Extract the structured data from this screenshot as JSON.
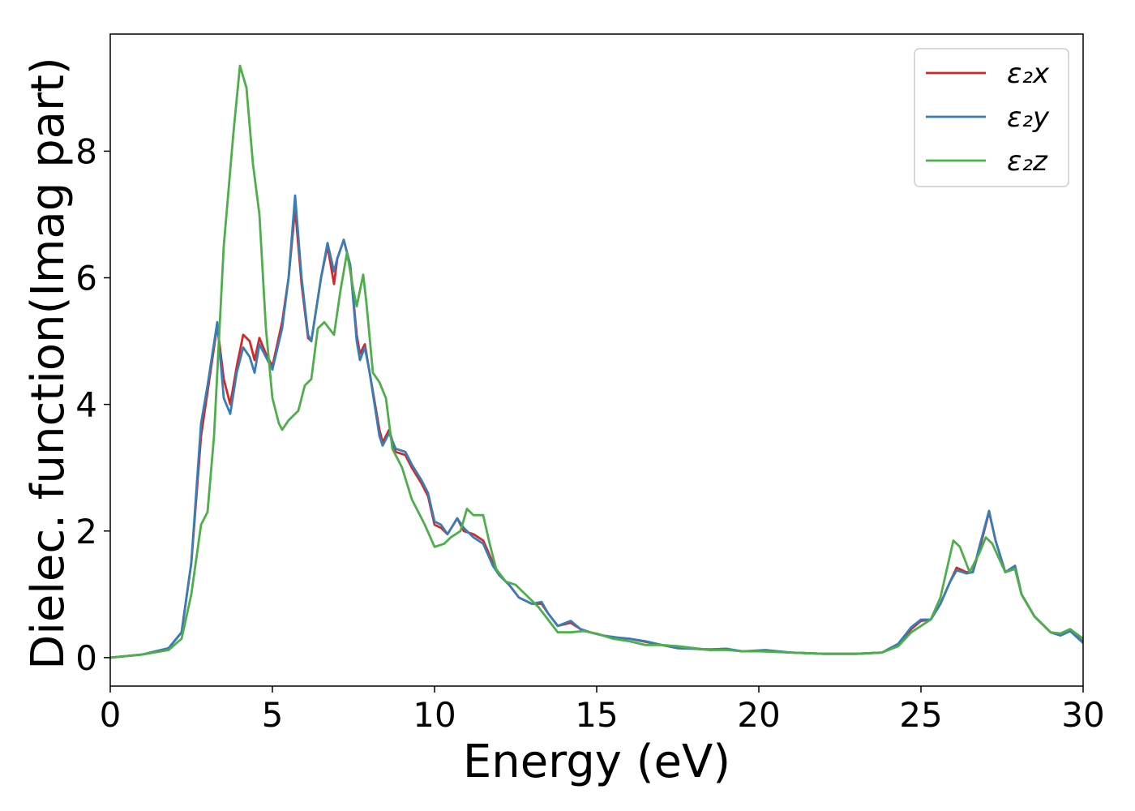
{
  "chart_data": {
    "type": "line",
    "xlabel": "Energy (eV)",
    "ylabel": "Dielec. function(Imag part)",
    "xlim": [
      0,
      30
    ],
    "ylim": [
      -0.45,
      9.85
    ],
    "xticks": [
      0,
      5,
      10,
      15,
      20,
      25,
      30
    ],
    "yticks": [
      0,
      2,
      4,
      6,
      8
    ],
    "grid": false,
    "legend_position": "top-right",
    "series": [
      {
        "name": "ε₂x",
        "color": "#d62728",
        "points": [
          [
            0,
            0
          ],
          [
            1,
            0.05
          ],
          [
            1.8,
            0.15
          ],
          [
            2.2,
            0.4
          ],
          [
            2.5,
            1.5
          ],
          [
            2.8,
            3.5
          ],
          [
            3.0,
            4.2
          ],
          [
            3.3,
            5.25
          ],
          [
            3.5,
            4.4
          ],
          [
            3.7,
            4.0
          ],
          [
            3.9,
            4.6
          ],
          [
            4.1,
            5.1
          ],
          [
            4.3,
            5.0
          ],
          [
            4.45,
            4.7
          ],
          [
            4.6,
            5.05
          ],
          [
            4.8,
            4.8
          ],
          [
            5.0,
            4.6
          ],
          [
            5.3,
            5.3
          ],
          [
            5.5,
            6.0
          ],
          [
            5.7,
            7.1
          ],
          [
            5.9,
            5.9
          ],
          [
            6.1,
            5.05
          ],
          [
            6.2,
            5.0
          ],
          [
            6.5,
            6.0
          ],
          [
            6.7,
            6.5
          ],
          [
            6.9,
            5.9
          ],
          [
            7.0,
            6.3
          ],
          [
            7.2,
            6.6
          ],
          [
            7.4,
            6.2
          ],
          [
            7.6,
            5.1
          ],
          [
            7.7,
            4.8
          ],
          [
            7.85,
            4.95
          ],
          [
            8.0,
            4.5
          ],
          [
            8.3,
            3.6
          ],
          [
            8.4,
            3.4
          ],
          [
            8.6,
            3.6
          ],
          [
            8.8,
            3.25
          ],
          [
            9.1,
            3.2
          ],
          [
            9.3,
            3.0
          ],
          [
            9.6,
            2.75
          ],
          [
            9.8,
            2.55
          ],
          [
            10.0,
            2.1
          ],
          [
            10.2,
            2.05
          ],
          [
            10.4,
            1.95
          ],
          [
            10.7,
            2.2
          ],
          [
            10.9,
            2.0
          ],
          [
            11.2,
            1.95
          ],
          [
            11.5,
            1.85
          ],
          [
            11.8,
            1.5
          ],
          [
            12.0,
            1.3
          ],
          [
            12.3,
            1.15
          ],
          [
            12.6,
            0.95
          ],
          [
            13.0,
            0.85
          ],
          [
            13.3,
            0.85
          ],
          [
            13.5,
            0.7
          ],
          [
            13.8,
            0.5
          ],
          [
            14.2,
            0.55
          ],
          [
            14.5,
            0.45
          ],
          [
            14.8,
            0.4
          ],
          [
            15.2,
            0.35
          ],
          [
            15.6,
            0.3
          ],
          [
            16.0,
            0.3
          ],
          [
            16.5,
            0.25
          ],
          [
            17.0,
            0.2
          ],
          [
            17.5,
            0.15
          ],
          [
            18.0,
            0.14
          ],
          [
            18.5,
            0.12
          ],
          [
            19.0,
            0.13
          ],
          [
            19.5,
            0.1
          ],
          [
            20.2,
            0.1
          ],
          [
            21.0,
            0.08
          ],
          [
            22.0,
            0.06
          ],
          [
            23.0,
            0.06
          ],
          [
            23.8,
            0.08
          ],
          [
            24.3,
            0.2
          ],
          [
            24.7,
            0.45
          ],
          [
            25.0,
            0.58
          ],
          [
            25.3,
            0.6
          ],
          [
            25.6,
            0.85
          ],
          [
            25.9,
            1.2
          ],
          [
            26.1,
            1.42
          ],
          [
            26.4,
            1.35
          ],
          [
            26.6,
            1.35
          ],
          [
            26.8,
            1.7
          ],
          [
            27.1,
            2.3
          ],
          [
            27.3,
            1.85
          ],
          [
            27.6,
            1.35
          ],
          [
            27.9,
            1.45
          ],
          [
            28.1,
            1.0
          ],
          [
            28.5,
            0.65
          ],
          [
            29.0,
            0.4
          ],
          [
            29.3,
            0.35
          ],
          [
            29.6,
            0.42
          ],
          [
            30.0,
            0.25
          ]
        ]
      },
      {
        "name": "ε₂y",
        "color": "#377eb8",
        "points": [
          [
            0,
            0
          ],
          [
            1,
            0.05
          ],
          [
            1.8,
            0.15
          ],
          [
            2.2,
            0.4
          ],
          [
            2.5,
            1.5
          ],
          [
            2.8,
            3.7
          ],
          [
            3.0,
            4.3
          ],
          [
            3.3,
            5.3
          ],
          [
            3.5,
            4.1
          ],
          [
            3.7,
            3.85
          ],
          [
            3.9,
            4.5
          ],
          [
            4.1,
            4.9
          ],
          [
            4.3,
            4.75
          ],
          [
            4.45,
            4.5
          ],
          [
            4.6,
            4.95
          ],
          [
            4.8,
            4.75
          ],
          [
            5.0,
            4.55
          ],
          [
            5.3,
            5.2
          ],
          [
            5.5,
            6.0
          ],
          [
            5.7,
            7.3
          ],
          [
            5.9,
            6.0
          ],
          [
            6.1,
            5.1
          ],
          [
            6.2,
            5.0
          ],
          [
            6.5,
            6.0
          ],
          [
            6.7,
            6.55
          ],
          [
            6.9,
            6.1
          ],
          [
            7.0,
            6.3
          ],
          [
            7.2,
            6.6
          ],
          [
            7.4,
            6.2
          ],
          [
            7.6,
            5.0
          ],
          [
            7.7,
            4.7
          ],
          [
            7.85,
            4.9
          ],
          [
            8.0,
            4.5
          ],
          [
            8.3,
            3.5
          ],
          [
            8.4,
            3.35
          ],
          [
            8.6,
            3.55
          ],
          [
            8.8,
            3.3
          ],
          [
            9.1,
            3.25
          ],
          [
            9.3,
            3.05
          ],
          [
            9.6,
            2.8
          ],
          [
            9.8,
            2.6
          ],
          [
            10.0,
            2.15
          ],
          [
            10.2,
            2.1
          ],
          [
            10.4,
            1.95
          ],
          [
            10.7,
            2.2
          ],
          [
            10.9,
            2.05
          ],
          [
            11.2,
            1.9
          ],
          [
            11.5,
            1.8
          ],
          [
            11.8,
            1.45
          ],
          [
            12.0,
            1.3
          ],
          [
            12.3,
            1.15
          ],
          [
            12.6,
            0.95
          ],
          [
            13.0,
            0.85
          ],
          [
            13.3,
            0.88
          ],
          [
            13.5,
            0.7
          ],
          [
            13.8,
            0.5
          ],
          [
            14.2,
            0.58
          ],
          [
            14.5,
            0.45
          ],
          [
            14.8,
            0.4
          ],
          [
            15.2,
            0.35
          ],
          [
            15.6,
            0.32
          ],
          [
            16.0,
            0.3
          ],
          [
            16.5,
            0.26
          ],
          [
            17.0,
            0.2
          ],
          [
            17.5,
            0.15
          ],
          [
            18.0,
            0.14
          ],
          [
            18.5,
            0.13
          ],
          [
            19.0,
            0.14
          ],
          [
            19.5,
            0.1
          ],
          [
            20.2,
            0.12
          ],
          [
            21.0,
            0.08
          ],
          [
            22.0,
            0.06
          ],
          [
            23.0,
            0.06
          ],
          [
            23.8,
            0.08
          ],
          [
            24.3,
            0.22
          ],
          [
            24.7,
            0.48
          ],
          [
            25.0,
            0.6
          ],
          [
            25.3,
            0.6
          ],
          [
            25.6,
            0.85
          ],
          [
            25.9,
            1.2
          ],
          [
            26.1,
            1.38
          ],
          [
            26.4,
            1.33
          ],
          [
            26.6,
            1.35
          ],
          [
            26.8,
            1.75
          ],
          [
            27.1,
            2.32
          ],
          [
            27.3,
            1.85
          ],
          [
            27.6,
            1.35
          ],
          [
            27.9,
            1.45
          ],
          [
            28.1,
            1.0
          ],
          [
            28.5,
            0.65
          ],
          [
            29.0,
            0.4
          ],
          [
            29.3,
            0.35
          ],
          [
            29.6,
            0.42
          ],
          [
            30.0,
            0.23
          ]
        ]
      },
      {
        "name": "ε₂z",
        "color": "#4daf4a",
        "points": [
          [
            0,
            0
          ],
          [
            1,
            0.05
          ],
          [
            1.8,
            0.12
          ],
          [
            2.2,
            0.3
          ],
          [
            2.5,
            1.0
          ],
          [
            2.8,
            2.1
          ],
          [
            3.0,
            2.3
          ],
          [
            3.2,
            3.5
          ],
          [
            3.5,
            6.5
          ],
          [
            3.8,
            8.3
          ],
          [
            4.0,
            9.35
          ],
          [
            4.2,
            9.0
          ],
          [
            4.4,
            7.8
          ],
          [
            4.6,
            7.0
          ],
          [
            4.8,
            5.2
          ],
          [
            5.0,
            4.1
          ],
          [
            5.2,
            3.7
          ],
          [
            5.3,
            3.6
          ],
          [
            5.5,
            3.75
          ],
          [
            5.8,
            3.9
          ],
          [
            6.0,
            4.3
          ],
          [
            6.2,
            4.4
          ],
          [
            6.4,
            5.2
          ],
          [
            6.6,
            5.3
          ],
          [
            6.9,
            5.1
          ],
          [
            7.1,
            5.8
          ],
          [
            7.3,
            6.4
          ],
          [
            7.5,
            5.8
          ],
          [
            7.6,
            5.55
          ],
          [
            7.8,
            6.05
          ],
          [
            7.9,
            5.6
          ],
          [
            8.1,
            4.5
          ],
          [
            8.3,
            4.35
          ],
          [
            8.5,
            4.1
          ],
          [
            8.7,
            3.3
          ],
          [
            9.0,
            3.0
          ],
          [
            9.3,
            2.5
          ],
          [
            9.7,
            2.1
          ],
          [
            10.0,
            1.75
          ],
          [
            10.3,
            1.8
          ],
          [
            10.5,
            1.9
          ],
          [
            10.8,
            2.0
          ],
          [
            11.0,
            2.35
          ],
          [
            11.2,
            2.25
          ],
          [
            11.5,
            2.25
          ],
          [
            11.7,
            1.8
          ],
          [
            11.9,
            1.4
          ],
          [
            12.2,
            1.2
          ],
          [
            12.5,
            1.15
          ],
          [
            12.8,
            1.0
          ],
          [
            13.2,
            0.8
          ],
          [
            13.5,
            0.6
          ],
          [
            13.8,
            0.4
          ],
          [
            14.2,
            0.4
          ],
          [
            14.6,
            0.42
          ],
          [
            15.0,
            0.38
          ],
          [
            15.5,
            0.3
          ],
          [
            16.0,
            0.26
          ],
          [
            16.5,
            0.2
          ],
          [
            17.0,
            0.2
          ],
          [
            17.5,
            0.18
          ],
          [
            18.0,
            0.15
          ],
          [
            18.5,
            0.12
          ],
          [
            19.0,
            0.12
          ],
          [
            19.5,
            0.1
          ],
          [
            20.0,
            0.1
          ],
          [
            21.0,
            0.08
          ],
          [
            22.0,
            0.06
          ],
          [
            23.0,
            0.06
          ],
          [
            23.8,
            0.08
          ],
          [
            24.3,
            0.18
          ],
          [
            24.7,
            0.4
          ],
          [
            25.0,
            0.5
          ],
          [
            25.3,
            0.6
          ],
          [
            25.6,
            0.95
          ],
          [
            25.8,
            1.4
          ],
          [
            26.0,
            1.85
          ],
          [
            26.2,
            1.75
          ],
          [
            26.5,
            1.35
          ],
          [
            26.8,
            1.65
          ],
          [
            27.0,
            1.9
          ],
          [
            27.2,
            1.8
          ],
          [
            27.6,
            1.35
          ],
          [
            27.9,
            1.4
          ],
          [
            28.1,
            1.0
          ],
          [
            28.5,
            0.65
          ],
          [
            29.0,
            0.4
          ],
          [
            29.3,
            0.38
          ],
          [
            29.6,
            0.45
          ],
          [
            30.0,
            0.3
          ]
        ]
      }
    ]
  }
}
